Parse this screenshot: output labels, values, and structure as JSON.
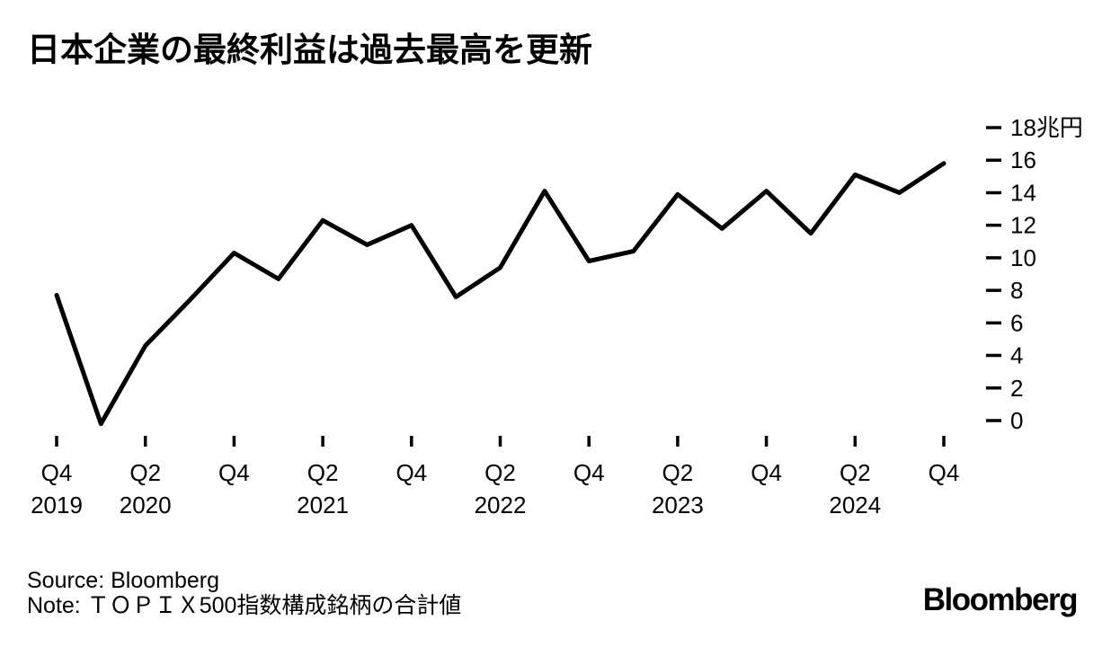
{
  "title": "日本企業の最終利益は過去最高を更新",
  "chart_data": {
    "type": "line",
    "title": "日本企業の最終利益は過去最高を更新",
    "unit": "兆円",
    "x": [
      "Q4 2019",
      "Q1 2020",
      "Q2 2020",
      "Q3 2020",
      "Q4 2020",
      "Q1 2021",
      "Q2 2021",
      "Q3 2021",
      "Q4 2021",
      "Q1 2022",
      "Q2 2022",
      "Q3 2022",
      "Q4 2022",
      "Q1 2023",
      "Q2 2023",
      "Q3 2023",
      "Q4 2023",
      "Q1 2024",
      "Q2 2024",
      "Q3 2024",
      "Q4 2024"
    ],
    "series": [
      {
        "name": "最終利益",
        "values": [
          7.7,
          -0.2,
          4.6,
          7.4,
          10.3,
          8.7,
          12.3,
          10.8,
          12.0,
          7.6,
          9.4,
          14.1,
          9.8,
          10.4,
          13.9,
          11.8,
          14.1,
          11.5,
          15.1,
          14.0,
          15.8
        ]
      }
    ],
    "x_ticks": [
      {
        "index": 0,
        "label": "Q4",
        "year": "2019"
      },
      {
        "index": 2,
        "label": "Q2",
        "year": "2020"
      },
      {
        "index": 4,
        "label": "Q4"
      },
      {
        "index": 6,
        "label": "Q2",
        "year": "2021"
      },
      {
        "index": 8,
        "label": "Q4"
      },
      {
        "index": 10,
        "label": "Q2",
        "year": "2022"
      },
      {
        "index": 12,
        "label": "Q4"
      },
      {
        "index": 14,
        "label": "Q2",
        "year": "2023"
      },
      {
        "index": 16,
        "label": "Q4"
      },
      {
        "index": 18,
        "label": "Q2",
        "year": "2024"
      },
      {
        "index": 20,
        "label": "Q4"
      }
    ],
    "y_ticks": [
      0,
      2,
      4,
      6,
      8,
      10,
      12,
      14,
      16,
      18
    ],
    "y_tick_labels": [
      "0",
      "2",
      "4",
      "6",
      "8",
      "10",
      "12",
      "14",
      "16",
      "18兆円"
    ],
    "ylim": [
      0,
      18
    ],
    "grid": false,
    "legend": "none",
    "line_color": "#000000"
  },
  "footer": {
    "source": "Source: Bloomberg",
    "note": "Note: ＴＯＰＩＸ500指数構成銘柄の合計値"
  },
  "branding": {
    "logo": "Bloomberg"
  }
}
